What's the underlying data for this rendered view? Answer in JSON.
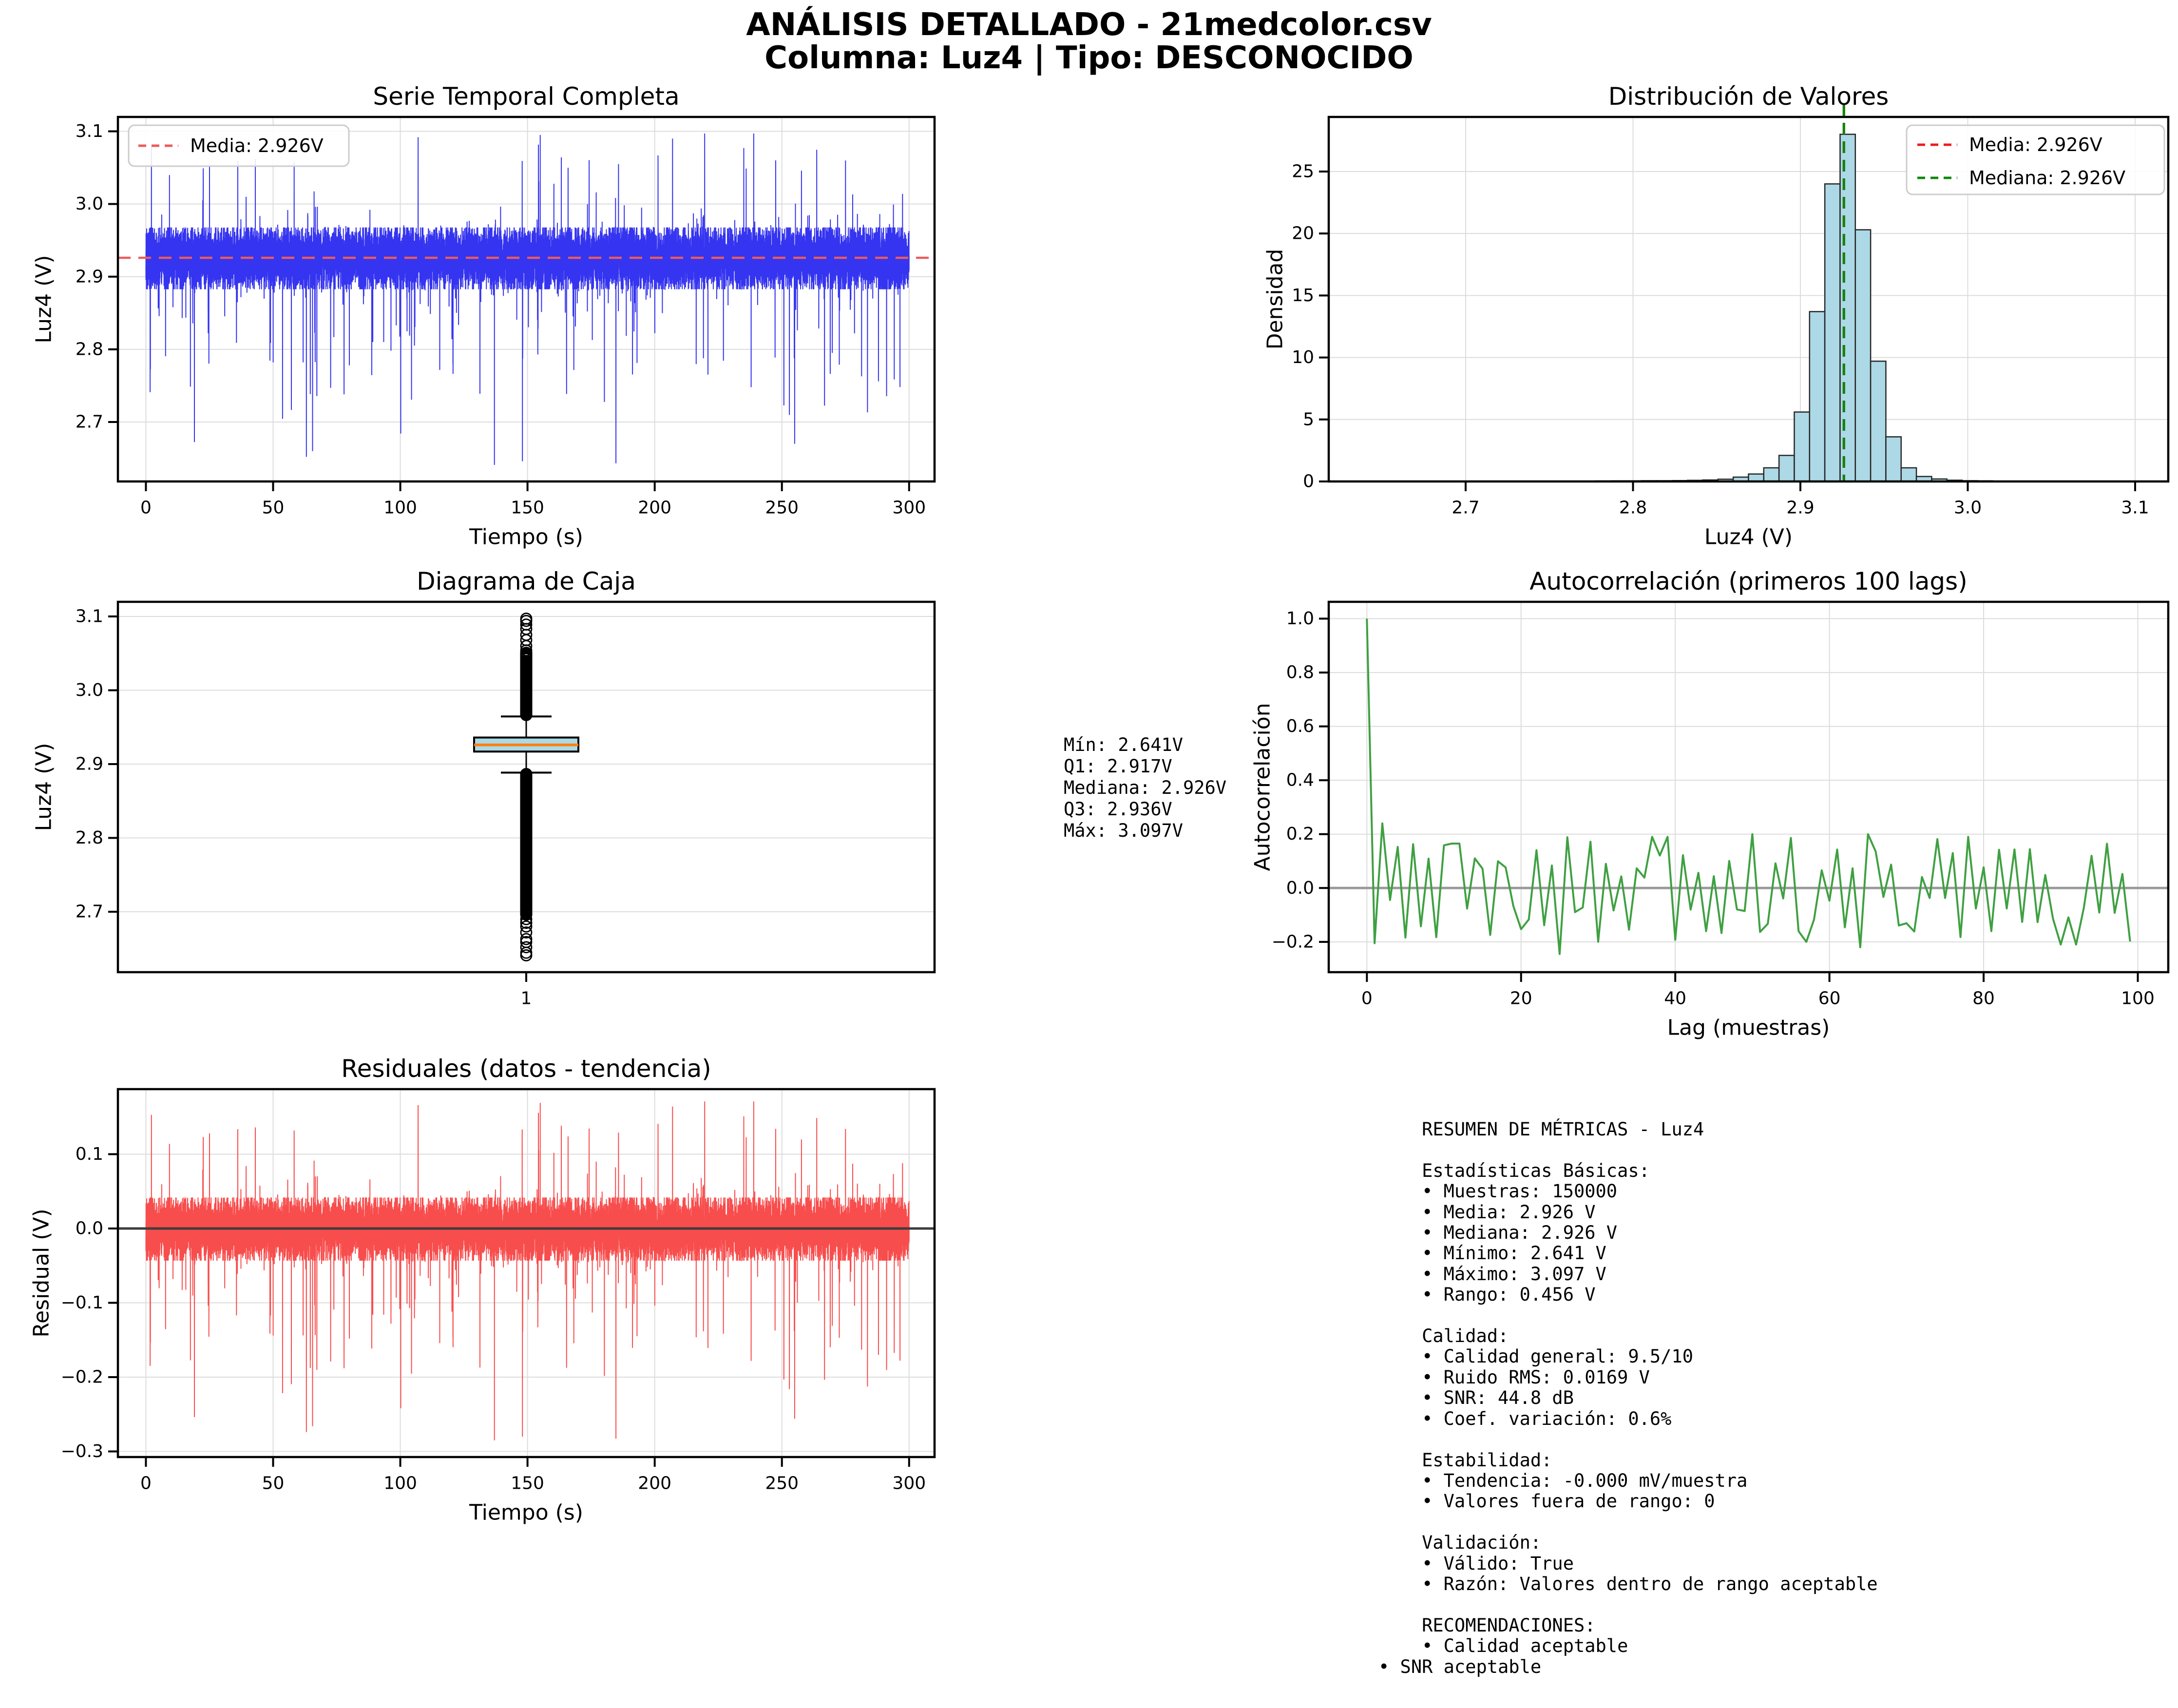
{
  "header": {
    "line1": "ANÁLISIS DETALLADO - 21medcolor.csv",
    "line2": "Columna: Luz4 | Tipo: DESCONOCIDO"
  },
  "mid_stats": [
    "Mín: 2.641V",
    "Q1: 2.917V",
    "Mediana: 2.926V",
    "Q3: 2.936V",
    "Máx: 3.097V"
  ],
  "metrics": [
    "    RESUMEN DE MÉTRICAS - Luz4",
    "",
    "    Estadísticas Básicas:",
    "    • Muestras: 150000",
    "    • Media: 2.926 V",
    "    • Mediana: 2.926 V",
    "    • Mínimo: 2.641 V",
    "    • Máximo: 3.097 V",
    "    • Rango: 0.456 V",
    "",
    "    Calidad:",
    "    • Calidad general: 9.5/10",
    "    • Ruido RMS: 0.0169 V",
    "    • SNR: 44.8 dB",
    "    • Coef. variación: 0.6%",
    "",
    "    Estabilidad:",
    "    • Tendencia: -0.000 mV/muestra",
    "    • Valores fuera de rango: 0",
    "",
    "    Validación:",
    "    • Válido: True",
    "    • Razón: Valores dentro de rango aceptable",
    "",
    "    RECOMENDACIONES:",
    "    • Calidad aceptable",
    "• SNR aceptable"
  ],
  "chart_data": [
    {
      "id": "serie_temporal",
      "type": "line",
      "title": "Serie Temporal Completa",
      "xlabel": "Tiempo (s)",
      "ylabel": "Luz4 (V)",
      "xlim": [
        -11,
        310
      ],
      "ylim": [
        2.6182,
        3.1198
      ],
      "xticks": {
        "values": [
          0,
          50,
          100,
          150,
          200,
          250,
          300
        ],
        "labels": [
          "0",
          "50",
          "100",
          "150",
          "200",
          "250",
          "300"
        ]
      },
      "yticks": {
        "values": [
          2.7,
          2.8,
          2.9,
          3.0,
          3.1
        ],
        "labels": [
          "2.7",
          "2.8",
          "2.9",
          "3.0",
          "3.1"
        ]
      },
      "color": "#3534f0",
      "mean": 2.926,
      "mean_color": "#ee5a5a",
      "legend": [
        {
          "label": "Media: 2.926V",
          "color": "#ee5a5a"
        }
      ],
      "gen": {
        "seed": 20,
        "n": 20000,
        "t_max": 300,
        "base": 2.9252,
        "band_std": 0.02,
        "band_clip": 0.0425,
        "pu3": 0.0004,
        "u3min": 0.13,
        "u3rng": 0.04,
        "pu2": 0.002,
        "u2min": 0.035,
        "u2rng": 0.095,
        "pu1": 0.012,
        "u1min": 0.004,
        "u1rng": 0.03,
        "pd3": 0.0005,
        "d3min": 0.19,
        "d3rng": 0.09,
        "pd2": 0.0045,
        "d2min": 0.05,
        "d2rng": 0.14,
        "pd1": 0.014,
        "d1min": 0.004,
        "d1rng": 0.045,
        "clip": [
          2.641,
          3.097
        ],
        "forced": [
          [
            1667,
            3.054
          ],
          [
            2867,
            3.062
          ],
          [
            7133,
            3.092
          ],
          [
            10333,
            3.095
          ],
          [
            13800,
            3.09
          ],
          [
            15667,
            3.077
          ],
          [
            18333,
            3.06
          ],
          [
            9133,
            2.641
          ],
          [
            9867,
            2.646
          ],
          [
            4367,
            2.66
          ],
          [
            17000,
            2.67
          ]
        ]
      }
    },
    {
      "id": "distribucion",
      "type": "bar",
      "title": "Distribución de Valores",
      "xlabel": "Luz4 (V)",
      "ylabel": "Densidad",
      "xlim": [
        2.6182,
        3.1198
      ],
      "ylim": [
        0,
        29.4
      ],
      "xticks": {
        "values": [
          2.7,
          2.8,
          2.9,
          3.0,
          3.1
        ],
        "labels": [
          "2.7",
          "2.8",
          "2.9",
          "3.0",
          "3.1"
        ]
      },
      "yticks": {
        "values": [
          0,
          5,
          10,
          15,
          20,
          25
        ],
        "labels": [
          "0",
          "5",
          "10",
          "15",
          "20",
          "25"
        ]
      },
      "bin_start": 2.641,
      "bin_width": 0.00912,
      "densities": [
        0,
        0,
        0,
        0,
        0,
        0,
        0,
        0,
        0,
        0,
        0,
        0,
        0,
        0,
        0,
        0.04,
        0.05,
        0.05,
        0.06,
        0.06,
        0.07,
        0.09,
        0.12,
        0.18,
        0.35,
        0.6,
        1.1,
        2.1,
        5.6,
        13.7,
        24.0,
        28.0,
        20.3,
        9.7,
        3.6,
        1.1,
        0.4,
        0.2,
        0.1,
        0.06,
        0.05,
        0,
        0,
        0,
        0,
        0,
        0,
        0,
        0,
        0
      ],
      "bar_fill": "#add8e6",
      "bar_edge": "#262626",
      "mean": 2.926,
      "median": 2.926,
      "mean_color": "#ed1c1c",
      "median_color": "#0a870a",
      "legend": [
        {
          "label": "Media: 2.926V",
          "color": "#ed1c1c"
        },
        {
          "label": "Mediana: 2.926V",
          "color": "#0a870a"
        }
      ]
    },
    {
      "id": "caja",
      "type": "box",
      "title": "Diagrama de Caja",
      "ylabel": "Luz4 (V)",
      "xlim": [
        0,
        2
      ],
      "ylim": [
        2.6182,
        3.1198
      ],
      "xticks": {
        "values": [
          1
        ],
        "labels": [
          "1"
        ]
      },
      "yticks": {
        "values": [
          2.7,
          2.8,
          2.9,
          3.0,
          3.1
        ],
        "labels": [
          "2.7",
          "2.8",
          "2.9",
          "3.0",
          "3.1"
        ]
      },
      "q1": 2.917,
      "median": 2.926,
      "q3": 2.936,
      "whisker_low": 2.8885,
      "whisker_high": 2.9645,
      "min": 2.641,
      "max": 3.097,
      "box_fill": "#add8e6",
      "box_edge": "#000000",
      "median_color": "#ff7f0e",
      "outlier_gen": {
        "seed": 9,
        "n_low": 800,
        "low_pow": 1.6,
        "low_max": 0.19,
        "n_high": 450,
        "high_pow": 1.8,
        "high_max": 0.0845,
        "forced_low": [
          2.641,
          2.6445,
          2.652,
          2.659,
          2.663,
          2.672,
          2.68,
          2.685,
          2.69,
          2.696
        ],
        "forced_high": [
          3.097,
          3.094,
          3.089,
          3.083,
          3.075,
          3.068,
          3.06,
          3.054
        ]
      }
    },
    {
      "id": "autocorrelacion",
      "type": "line",
      "title": "Autocorrelación (primeros 100 lags)",
      "xlabel": "Lag (muestras)",
      "ylabel": "Autocorrelación",
      "xlim": [
        -4.95,
        103.95
      ],
      "ylim": [
        -0.3125,
        1.0625
      ],
      "xticks": {
        "values": [
          0,
          20,
          40,
          60,
          80,
          100
        ],
        "labels": [
          "0",
          "20",
          "40",
          "60",
          "80",
          "100"
        ]
      },
      "yticks": {
        "values": [
          -0.2,
          0.0,
          0.2,
          0.4,
          0.6,
          0.8,
          1.0
        ],
        "labels": [
          "−0.2",
          "0.0",
          "0.2",
          "0.4",
          "0.6",
          "0.8",
          "1.0"
        ]
      },
      "color": "#3fa042",
      "zero_color": "#999999",
      "gen": {
        "seed": 5,
        "n": 100,
        "amp": 0.17,
        "alt": 0.85,
        "forced": [
          [
            1,
            -0.205
          ],
          [
            2,
            0.24
          ],
          [
            11,
            0.165
          ],
          [
            25,
            -0.245
          ],
          [
            37,
            0.19
          ],
          [
            39,
            0.19
          ],
          [
            50,
            0.2
          ],
          [
            57,
            -0.2
          ],
          [
            64,
            -0.22
          ],
          [
            65,
            0.2
          ],
          [
            78,
            0.19
          ],
          [
            90,
            -0.21
          ],
          [
            92,
            -0.21
          ]
        ]
      }
    },
    {
      "id": "residuales",
      "type": "line",
      "title": "Residuales (datos - tendencia)",
      "xlabel": "Tiempo (s)",
      "ylabel": "Residual (V)",
      "xlim": [
        -11,
        310
      ],
      "ylim": [
        -0.3075,
        0.1875
      ],
      "xticks": {
        "values": [
          0,
          50,
          100,
          150,
          200,
          250,
          300
        ],
        "labels": [
          "0",
          "50",
          "100",
          "150",
          "200",
          "250",
          "300"
        ]
      },
      "yticks": {
        "values": [
          0.1,
          0.0,
          -0.1,
          -0.2,
          -0.3
        ],
        "labels": [
          "0.1",
          "0.0",
          "−0.1",
          "−0.2",
          "−0.3"
        ]
      },
      "color": "#f84d4d",
      "zero_color": "#3d3d3d",
      "derive_from": "serie_temporal",
      "offset": 2.926
    }
  ]
}
